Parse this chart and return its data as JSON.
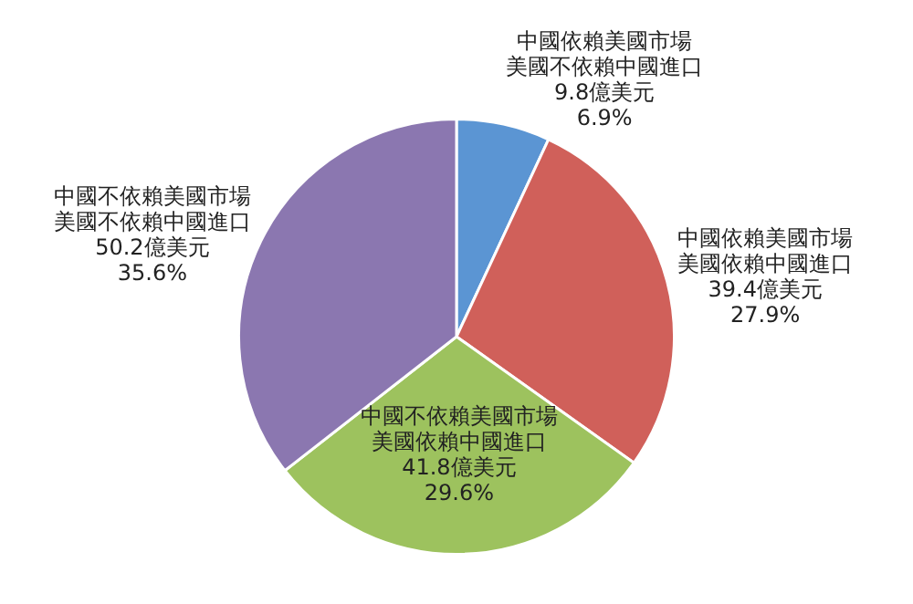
{
  "chart_data": {
    "type": "pie",
    "categories": [
      "中國依賴美國市場美國不依賴中國進口",
      "中國依賴美國市場美國依賴中國進口",
      "中國不依賴美國市場美國依賴中國進口",
      "中國不依賴美國市場美國不依賴中國進口"
    ],
    "values": [
      9.8,
      39.4,
      41.8,
      50.2
    ],
    "value_labels": [
      "9.8億美元\n6.9%",
      "39.4億美元\n27.9%",
      "41.8億美元\n29.6%",
      "50.2億美元\n35.6%"
    ],
    "colors": [
      "#5b95d3",
      "#d0605a",
      "#9dc25e",
      "#8b77b0"
    ],
    "legend": false
  }
}
